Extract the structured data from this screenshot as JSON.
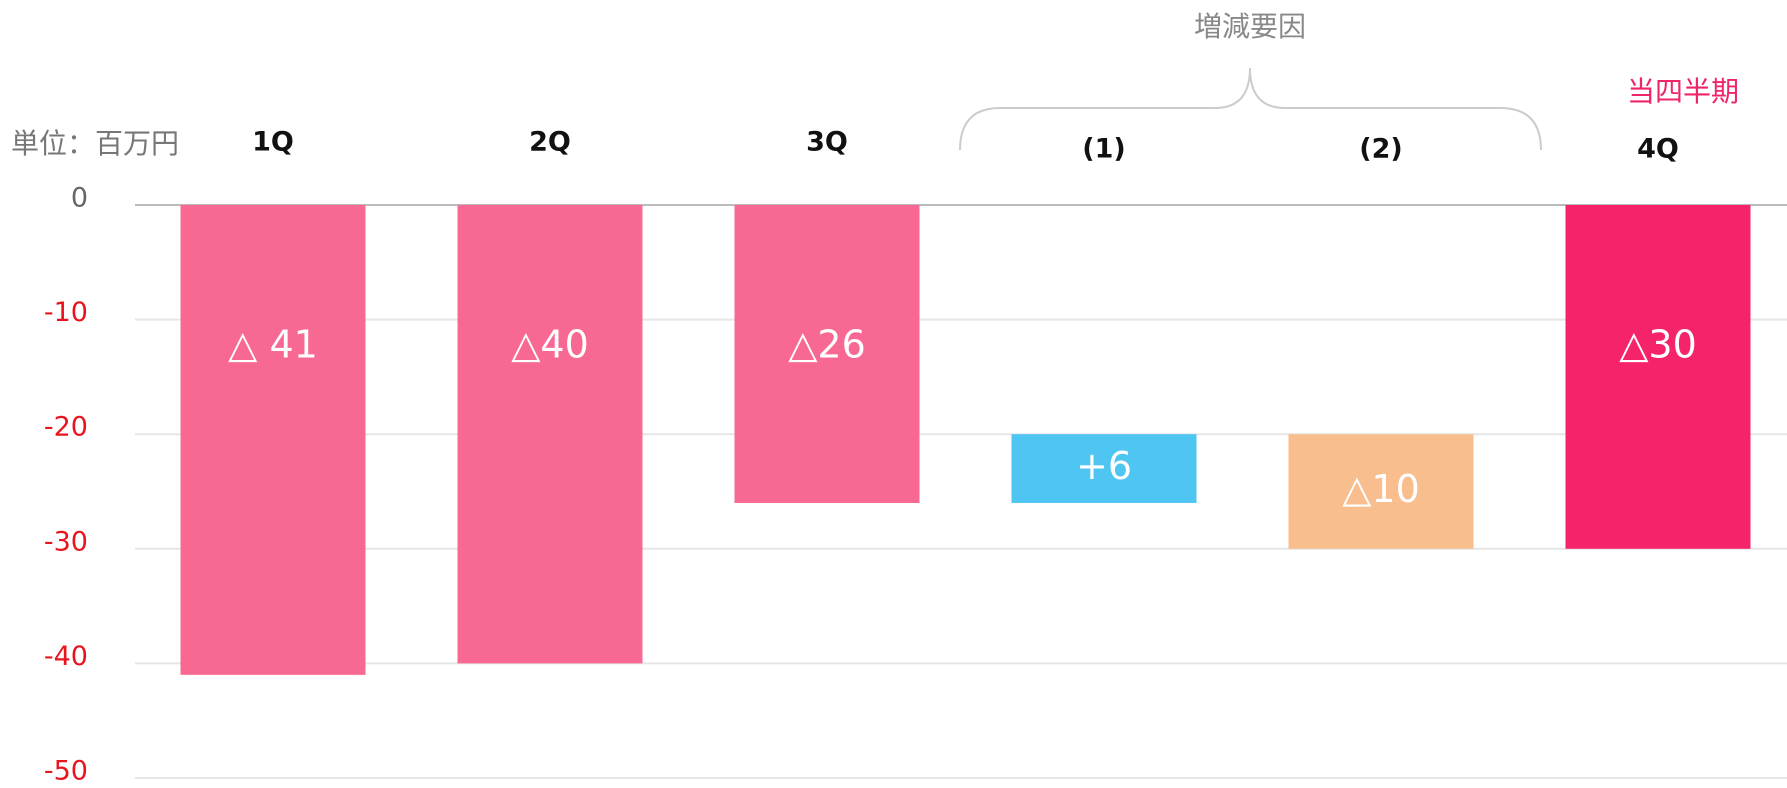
{
  "chart_data": {
    "type": "waterfall",
    "unit_label": "単位：百万円",
    "annotations": {
      "bracket": "増減要因",
      "current": "当四半期"
    },
    "categories": [
      "1Q",
      "2Q",
      "3Q",
      "(1)",
      "(2)",
      "4Q"
    ],
    "measure": [
      "absolute",
      "absolute",
      "absolute",
      "relative",
      "relative",
      "absolute"
    ],
    "values": [
      -41,
      -40,
      -26,
      6,
      -10,
      -30
    ],
    "value_labels": [
      "△ 41",
      "△40",
      "△26",
      "+6",
      "△10",
      "△30"
    ],
    "colors": [
      "#f76892",
      "#f76892",
      "#f76892",
      "#4fc6f2",
      "#f8be8e",
      "#f5246a"
    ],
    "ylim": [
      -50,
      0
    ],
    "yticks": [
      0,
      -10,
      -20,
      -30,
      -40,
      -50
    ],
    "grid": true
  }
}
